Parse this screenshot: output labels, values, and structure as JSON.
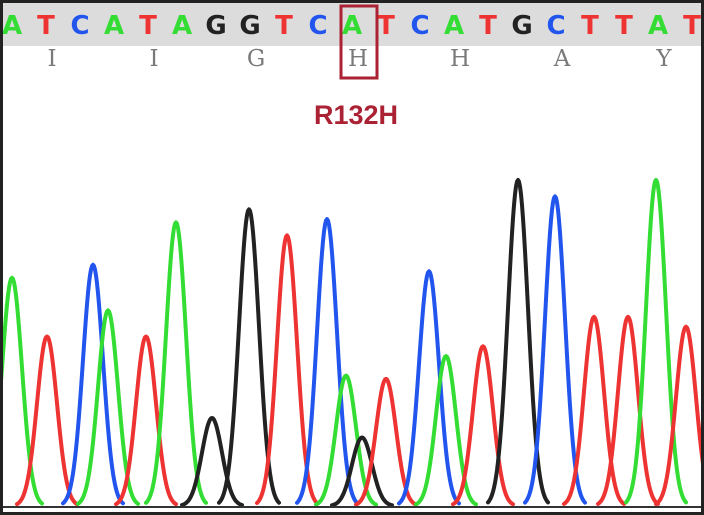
{
  "colors": {
    "A": "#33dd33",
    "T": "#ee3333",
    "C": "#2255ee",
    "G": "#222222",
    "highlight": "#aa2233",
    "amino_acid": "#7a7a7a"
  },
  "mutation_label": "R132H",
  "chart_data": {
    "type": "chromatogram",
    "sequence": [
      "A",
      "T",
      "C",
      "A",
      "T",
      "A",
      "G",
      "G",
      "T",
      "C",
      "A",
      "T",
      "C",
      "A",
      "T",
      "G",
      "C",
      "T",
      "T",
      "A",
      "T"
    ],
    "amino_acids": [
      "I",
      "I",
      "G",
      "H",
      "H",
      "A",
      "Y"
    ],
    "highlight_codon_index": 3,
    "peaks": [
      {
        "base": "A",
        "x": 12,
        "h": 0.7
      },
      {
        "base": "T",
        "x": 47,
        "h": 0.52
      },
      {
        "base": "C",
        "x": 93,
        "h": 0.74
      },
      {
        "base": "A",
        "x": 108,
        "h": 0.6
      },
      {
        "base": "T",
        "x": 146,
        "h": 0.52
      },
      {
        "base": "A",
        "x": 176,
        "h": 0.87
      },
      {
        "base": "G",
        "x": 212,
        "h": 0.27
      },
      {
        "base": "G",
        "x": 249,
        "h": 0.91
      },
      {
        "base": "T",
        "x": 287,
        "h": 0.83
      },
      {
        "base": "C",
        "x": 327,
        "h": 0.88
      },
      {
        "base": "A",
        "x": 346,
        "h": 0.4
      },
      {
        "base": "G",
        "x": 362,
        "h": 0.21
      },
      {
        "base": "T",
        "x": 386,
        "h": 0.39
      },
      {
        "base": "C",
        "x": 429,
        "h": 0.72
      },
      {
        "base": "A",
        "x": 446,
        "h": 0.46
      },
      {
        "base": "T",
        "x": 483,
        "h": 0.49
      },
      {
        "base": "G",
        "x": 518,
        "h": 1.0
      },
      {
        "base": "C",
        "x": 555,
        "h": 0.95
      },
      {
        "base": "T",
        "x": 594,
        "h": 0.58
      },
      {
        "base": "T",
        "x": 628,
        "h": 0.58
      },
      {
        "base": "A",
        "x": 656,
        "h": 1.0
      },
      {
        "base": "T",
        "x": 686,
        "h": 0.55
      }
    ]
  }
}
